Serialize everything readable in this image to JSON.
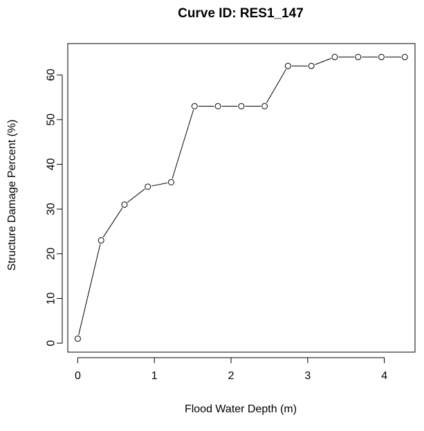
{
  "chart_data": {
    "type": "line",
    "title": "Curve ID: RES1_147",
    "xlabel": "Flood Water Depth (m)",
    "ylabel": "Structure Damage Percent (%)",
    "xlim": [
      -0.13,
      4.4
    ],
    "ylim": [
      -2,
      67
    ],
    "xticks": [
      0,
      1,
      2,
      3,
      4
    ],
    "yticks": [
      0,
      10,
      20,
      30,
      40,
      50,
      60
    ],
    "grid": false,
    "series": [
      {
        "x": [
          0,
          0.305,
          0.61,
          0.914,
          1.219,
          1.524,
          1.829,
          2.134,
          2.438,
          2.743,
          3.048,
          3.353,
          3.658,
          3.962,
          4.267
        ],
        "y": [
          1,
          23,
          31,
          35,
          36,
          53,
          53,
          53,
          53,
          62,
          62,
          64,
          64,
          64,
          64
        ],
        "marker": "open-circle",
        "color": "#000000"
      }
    ]
  }
}
